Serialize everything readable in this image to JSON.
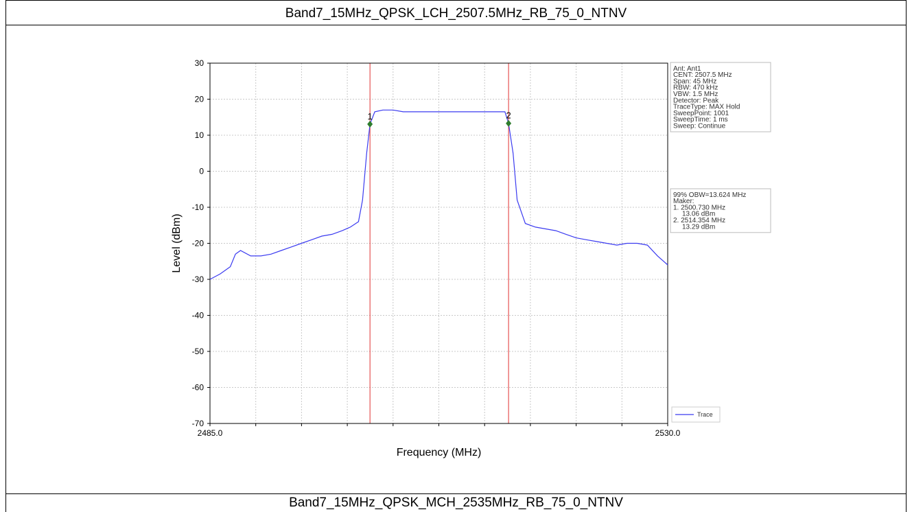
{
  "header": {
    "top_caption": "Band7_15MHz_QPSK_LCH_2507.5MHz_RB_75_0_NTNV",
    "bottom_caption": "Band7_15MHz_QPSK_MCH_2535MHz_RB_75_0_NTNV"
  },
  "info_box": {
    "lines": [
      "Ant: Ant1",
      "CENT: 2507.5 MHz",
      "Span: 45 MHz",
      "RBW: 470 kHz",
      "VBW: 1.5 MHz",
      "Detector: Peak",
      "TraceType: MAX Hold",
      "SweepPoint: 1001",
      "SweepTime: 1 ms",
      "Sweep: Continue"
    ]
  },
  "obw_box": {
    "lines": [
      "99% OBW=13.624 MHz",
      "Maker:",
      "1. 2500.730 MHz",
      "13.06 dBm",
      "2. 2514.354 MHz",
      "13.29 dBm"
    ]
  },
  "colors": {
    "trace": "#3a3af0",
    "marker_line": "#e03030",
    "marker_dot": "#2e7d2e",
    "grid": "#c8c8c8"
  },
  "chart_data": {
    "type": "line",
    "xlabel": "Frequency (MHz)",
    "ylabel": "Level (dBm)",
    "xlim": [
      2485.0,
      2530.0
    ],
    "ylim": [
      -70,
      30
    ],
    "x_tick_labels": [
      "2485.0",
      "2530.0"
    ],
    "y_ticks": [
      30,
      20,
      10,
      0,
      -10,
      -20,
      -30,
      -40,
      -50,
      -60,
      -70
    ],
    "x_minor_ticks": [
      2485,
      2489.5,
      2494,
      2498.5,
      2503,
      2507.5,
      2512,
      2516.5,
      2521,
      2525.5,
      2530
    ],
    "grid": true,
    "legend": {
      "position": "bottom-right",
      "entries": [
        "Trace"
      ]
    },
    "series": [
      {
        "name": "Trace",
        "x": [
          2485.0,
          2486.0,
          2487.0,
          2487.5,
          2488.0,
          2489.0,
          2490.0,
          2491.0,
          2492.0,
          2493.0,
          2494.0,
          2495.0,
          2496.0,
          2497.0,
          2498.0,
          2498.8,
          2499.6,
          2500.0,
          2500.4,
          2500.73,
          2501.2,
          2502.0,
          2503.0,
          2504.0,
          2505.0,
          2506.0,
          2507.0,
          2508.0,
          2509.0,
          2510.0,
          2511.0,
          2512.0,
          2513.0,
          2514.0,
          2514.354,
          2514.8,
          2515.2,
          2516.0,
          2517.0,
          2518.0,
          2519.0,
          2520.0,
          2521.0,
          2522.0,
          2523.0,
          2524.0,
          2525.0,
          2526.0,
          2527.0,
          2528.0,
          2529.0,
          2530.0
        ],
        "values": [
          -30.0,
          -28.5,
          -26.5,
          -23.0,
          -22.0,
          -23.5,
          -23.5,
          -23.0,
          -22.0,
          -21.0,
          -20.0,
          -19.0,
          -18.0,
          -17.5,
          -16.5,
          -15.5,
          -14.0,
          -8.0,
          5.0,
          13.06,
          16.5,
          17.0,
          17.0,
          16.5,
          16.5,
          16.5,
          16.5,
          16.5,
          16.5,
          16.5,
          16.5,
          16.5,
          16.5,
          16.5,
          13.29,
          5.0,
          -8.0,
          -14.5,
          -15.5,
          -16.0,
          -16.5,
          -17.5,
          -18.5,
          -19.0,
          -19.5,
          -20.0,
          -20.5,
          -20.0,
          -20.0,
          -20.5,
          -23.5,
          -26.0
        ]
      }
    ],
    "markers": [
      {
        "label": "1",
        "x": 2500.73,
        "y": 13.06
      },
      {
        "label": "2",
        "x": 2514.354,
        "y": 13.29
      }
    ]
  }
}
